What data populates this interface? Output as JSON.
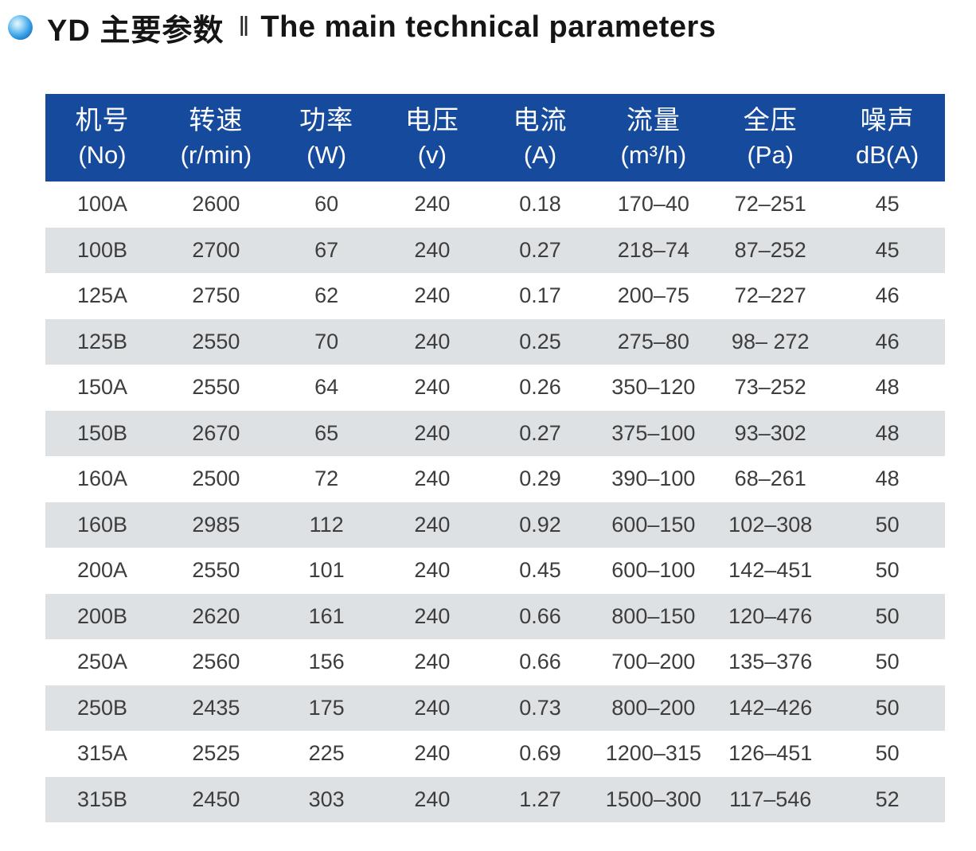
{
  "page": {
    "title_cn": "YD 主要参数",
    "title_separator": "‖",
    "title_en": "The main technical parameters"
  },
  "icons": {
    "bullet": "blue-sphere-bullet-icon"
  },
  "colors": {
    "header_bg": "#164a9d",
    "header_text": "#ffffff",
    "row_alt_bg": "#dde1e4",
    "body_text": "#3d3d3d",
    "title_text": "#151515",
    "bullet_blue": "#0b6dc2"
  },
  "table": {
    "columns": [
      {
        "cn": "机号",
        "sub": "(No)"
      },
      {
        "cn": "转速",
        "sub": "(r/min)"
      },
      {
        "cn": "功率",
        "sub": "(W)"
      },
      {
        "cn": "电压",
        "sub": "(v)"
      },
      {
        "cn": "电流",
        "sub": "(A)"
      },
      {
        "cn": "流量",
        "sub": "(m³/h)"
      },
      {
        "cn": "全压",
        "sub": "(Pa)"
      },
      {
        "cn": "噪声",
        "sub": "dB(A)"
      }
    ],
    "rows": [
      [
        "100A",
        "2600",
        "60",
        "240",
        "0.18",
        "170–40",
        "72–251",
        "45"
      ],
      [
        "100B",
        "2700",
        "67",
        "240",
        "0.27",
        "218–74",
        "87–252",
        "45"
      ],
      [
        "125A",
        "2750",
        "62",
        "240",
        "0.17",
        "200–75",
        "72–227",
        "46"
      ],
      [
        "125B",
        "2550",
        "70",
        "240",
        "0.25",
        "275–80",
        "98– 272",
        "46"
      ],
      [
        "150A",
        "2550",
        "64",
        "240",
        "0.26",
        "350–120",
        "73–252",
        "48"
      ],
      [
        "150B",
        "2670",
        "65",
        "240",
        "0.27",
        "375–100",
        "93–302",
        "48"
      ],
      [
        "160A",
        "2500",
        "72",
        "240",
        "0.29",
        "390–100",
        "68–261",
        "48"
      ],
      [
        "160B",
        "2985",
        "112",
        "240",
        "0.92",
        "600–150",
        "102–308",
        "50"
      ],
      [
        "200A",
        "2550",
        "101",
        "240",
        "0.45",
        "600–100",
        "142–451",
        "50"
      ],
      [
        "200B",
        "2620",
        "161",
        "240",
        "0.66",
        "800–150",
        "120–476",
        "50"
      ],
      [
        "250A",
        "2560",
        "156",
        "240",
        "0.66",
        "700–200",
        "135–376",
        "50"
      ],
      [
        "250B",
        "2435",
        "175",
        "240",
        "0.73",
        "800–200",
        "142–426",
        "50"
      ],
      [
        "315A",
        "2525",
        "225",
        "240",
        "0.69",
        "1200–315",
        "126–451",
        "50"
      ],
      [
        "315B",
        "2450",
        "303",
        "240",
        "1.27",
        "1500–300",
        "117–546",
        "52"
      ]
    ]
  }
}
